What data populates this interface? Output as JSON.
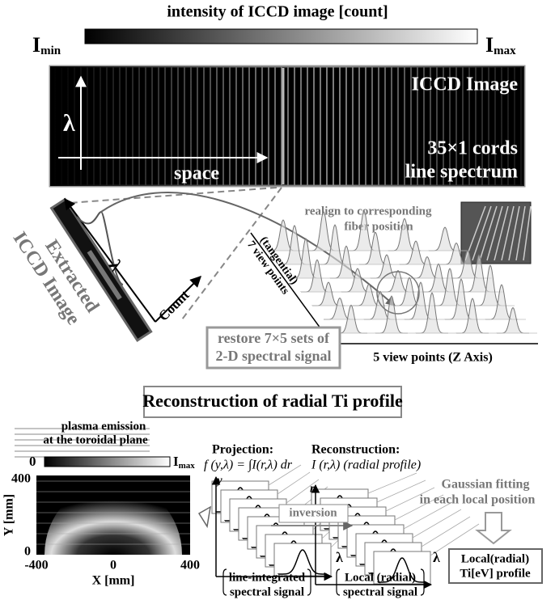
{
  "colorbar": {
    "title": "intensity of ICCD image [count]",
    "min_base": "I",
    "min_sub": "min",
    "max_base": "I",
    "max_sub": "max"
  },
  "iccd_image": {
    "label": "ICCD Image",
    "cords": "35×1 cords",
    "spectrum": "line spectrum",
    "vertical_axis": "λ",
    "horizontal_axis": "space"
  },
  "extracted": {
    "line1": "Extracted",
    "line2": "ICCD Image",
    "lambda_axis": "λ",
    "count_axis": "Count"
  },
  "realign": {
    "line1": "realign to corresponding",
    "line2": "fiber position"
  },
  "view_points": {
    "tangential_line1": "7 view points",
    "tangential_line2": "(tangential)",
    "z_axis": "5 view points (Z Axis)"
  },
  "restore": {
    "line1": "restore 7×5 sets of",
    "line2": "2-D spectral signal"
  },
  "reconstruction_title": "Reconstruction of radial Ti profile",
  "emission": {
    "line1": "plasma emission",
    "line2": "at the toroidal plane",
    "bar_min": "0",
    "bar_max_base": "I",
    "bar_max_sub": "max"
  },
  "plot": {
    "y_ticks": [
      "400",
      "0"
    ],
    "y_label": "Y [mm]",
    "x_ticks": [
      "-400",
      "0",
      "400"
    ],
    "x_label": "X [mm]"
  },
  "projection": {
    "title": "Projection:",
    "formula": "f (y,λ) = ∫I(r,λ) dr",
    "axis_y": "y",
    "axis_lambda": "λ"
  },
  "recon": {
    "title": "Reconstruction:",
    "formula": "I (r,λ) (radial profile)",
    "axis_r": "r",
    "axis_lambda": "λ"
  },
  "gaussian": {
    "line1": "Gaussian fitting",
    "line2": "in each local position"
  },
  "inversion": "inversion",
  "result": {
    "line1": "Local(radial)",
    "line2": "Ti[eV] profile"
  },
  "bottom_left": {
    "line1": "line-integrated",
    "line2": "spectral signal"
  },
  "bottom_right": {
    "line1": "Local (radial)",
    "line2": "spectral signal"
  }
}
